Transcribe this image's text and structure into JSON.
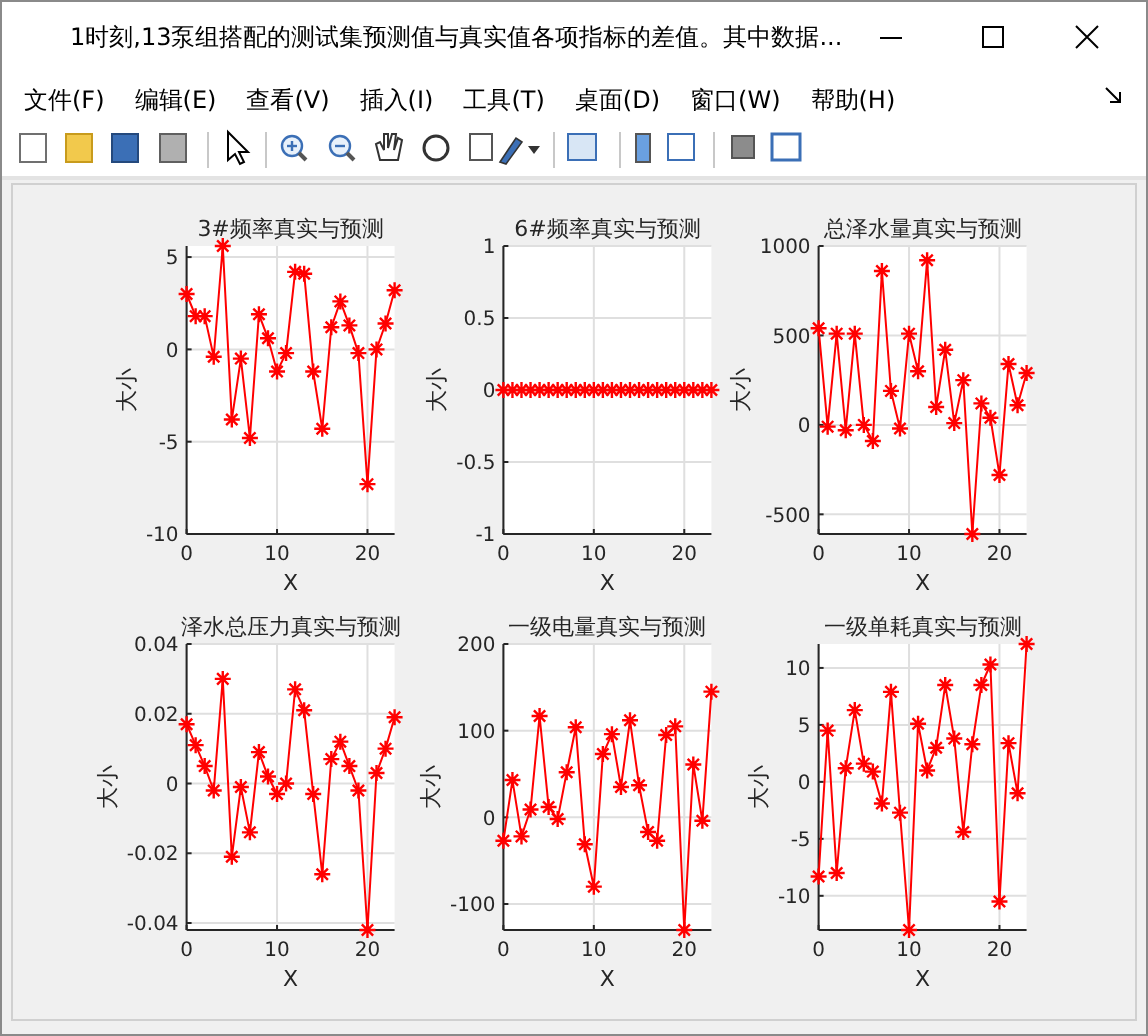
{
  "chart_data": [
    {
      "type": "other",
      "title": "1时刻,13泵组搭配的测试集预测值与真实值各项指标的差值。其中数据...",
      "annotations": [
        "文件(F)",
        "编辑(E)",
        "查看(V)",
        "插入(I)",
        "工具(T)",
        "桌面(D)",
        "窗口(W)",
        "帮助(H)"
      ]
    },
    {
      "type": "line",
      "title": "3#频率真实与预测",
      "xlabel": "X",
      "ylabel": "大小",
      "x": [
        0,
        1,
        2,
        3,
        4,
        5,
        6,
        7,
        8,
        9,
        10,
        11,
        12,
        13,
        14,
        15,
        16,
        17,
        18,
        19,
        20,
        21,
        22,
        23
      ],
      "series": [
        {
          "color": "#ff0000",
          "values": [
            3.0,
            1.8,
            1.8,
            -0.4,
            5.6,
            -3.8,
            -0.5,
            -4.8,
            1.9,
            0.6,
            -1.2,
            -0.2,
            4.2,
            4.1,
            -1.2,
            -4.3,
            1.2,
            2.6,
            1.3,
            -0.2,
            -7.3,
            0.0,
            1.4,
            3.2
          ]
        }
      ],
      "xlim": [
        0,
        23
      ],
      "ylim": [
        -10,
        5.6
      ],
      "xticks": [
        0,
        10,
        20
      ],
      "yticks": [
        -10,
        -5,
        0,
        5
      ],
      "grid": true,
      "marker": "cross",
      "line_style": "solid"
    },
    {
      "type": "line",
      "title": "6#频率真实与预测",
      "xlabel": "X",
      "ylabel": "大小",
      "x": [
        0,
        1,
        2,
        3,
        4,
        5,
        6,
        7,
        8,
        9,
        10,
        11,
        12,
        13,
        14,
        15,
        16,
        17,
        18,
        19,
        20,
        21,
        22,
        23
      ],
      "series": [
        {
          "color": "#ff0000",
          "values": [
            0,
            0,
            0,
            0,
            0,
            0,
            0,
            0,
            0,
            0,
            0,
            0,
            0,
            0,
            0,
            0,
            0,
            0,
            0,
            0,
            0,
            0,
            0,
            0
          ]
        }
      ],
      "xlim": [
        0,
        23
      ],
      "ylim": [
        -1,
        1
      ],
      "xticks": [
        0,
        10,
        20
      ],
      "yticks": [
        -1,
        -0.5,
        0,
        0.5,
        1
      ],
      "grid": true,
      "marker": "cross",
      "line_style": "solid"
    },
    {
      "type": "line",
      "title": "总泽水量真实与预测",
      "xlabel": "X",
      "ylabel": "大小",
      "x": [
        0,
        1,
        2,
        3,
        4,
        5,
        6,
        7,
        8,
        9,
        10,
        11,
        12,
        13,
        14,
        15,
        16,
        17,
        18,
        19,
        20,
        21,
        22,
        23
      ],
      "series": [
        {
          "color": "#ff0000",
          "values": [
            540,
            -10,
            510,
            -30,
            510,
            0,
            -90,
            860,
            190,
            -20,
            510,
            300,
            920,
            100,
            420,
            10,
            250,
            -610,
            120,
            40,
            -280,
            340,
            110,
            290
          ]
        }
      ],
      "xlim": [
        0,
        23
      ],
      "ylim": [
        -610,
        1000
      ],
      "xticks": [
        0,
        10,
        20
      ],
      "yticks": [
        -500,
        0,
        500,
        1000
      ],
      "grid": true,
      "marker": "cross",
      "line_style": "solid"
    },
    {
      "type": "line",
      "title": "泽水总压力真实与预测",
      "xlabel": "X",
      "ylabel": "大小",
      "x": [
        0,
        1,
        2,
        3,
        4,
        5,
        6,
        7,
        8,
        9,
        10,
        11,
        12,
        13,
        14,
        15,
        16,
        17,
        18,
        19,
        20,
        21,
        22,
        23
      ],
      "series": [
        {
          "color": "#ff0000",
          "values": [
            0.017,
            0.011,
            0.005,
            -0.002,
            0.03,
            -0.021,
            -0.001,
            -0.014,
            0.009,
            0.002,
            -0.003,
            0.0,
            0.027,
            0.021,
            -0.003,
            -0.026,
            0.007,
            0.012,
            0.005,
            -0.002,
            -0.042,
            0.003,
            0.01,
            0.019
          ]
        }
      ],
      "xlim": [
        0,
        23
      ],
      "ylim": [
        -0.042,
        0.04
      ],
      "xticks": [
        0,
        10,
        20
      ],
      "yticks": [
        -0.04,
        -0.02,
        0,
        0.02,
        0.04
      ],
      "grid": true,
      "marker": "cross",
      "line_style": "solid"
    },
    {
      "type": "line",
      "title": "一级电量真实与预测",
      "xlabel": "X",
      "ylabel": "大小",
      "x": [
        0,
        1,
        2,
        3,
        4,
        5,
        6,
        7,
        8,
        9,
        10,
        11,
        12,
        13,
        14,
        15,
        16,
        17,
        18,
        19,
        20,
        21,
        22,
        23
      ],
      "series": [
        {
          "color": "#ff0000",
          "values": [
            -27,
            43,
            -22,
            9,
            117,
            12,
            -2,
            52,
            104,
            -31,
            -80,
            73,
            96,
            35,
            112,
            37,
            -17,
            -27,
            95,
            105,
            -130,
            61,
            -4,
            145
          ]
        }
      ],
      "xlim": [
        0,
        23
      ],
      "ylim": [
        -130,
        200
      ],
      "xticks": [
        0,
        10,
        20
      ],
      "yticks": [
        -100,
        0,
        100,
        200
      ],
      "grid": true,
      "marker": "cross",
      "line_style": "solid"
    },
    {
      "type": "line",
      "title": "一级单耗真实与预测",
      "xlabel": "X",
      "ylabel": "大小",
      "x": [
        0,
        1,
        2,
        3,
        4,
        5,
        6,
        7,
        8,
        9,
        10,
        11,
        12,
        13,
        14,
        15,
        16,
        17,
        18,
        19,
        20,
        21,
        22,
        23
      ],
      "series": [
        {
          "color": "#ff0000",
          "values": [
            -8.3,
            4.5,
            -8.0,
            1.2,
            6.3,
            1.6,
            0.9,
            -1.9,
            7.9,
            -2.7,
            -13,
            5.1,
            1.0,
            3.0,
            8.5,
            3.8,
            -4.4,
            3.3,
            8.5,
            10.3,
            -10.5,
            3.4,
            -1.0,
            12.1
          ]
        }
      ],
      "xlim": [
        0,
        23
      ],
      "ylim": [
        -13,
        12.1
      ],
      "xticks": [
        0,
        10,
        20
      ],
      "yticks": [
        -10,
        -5,
        0,
        5,
        10
      ],
      "grid": true,
      "marker": "cross",
      "line_style": "solid"
    }
  ]
}
